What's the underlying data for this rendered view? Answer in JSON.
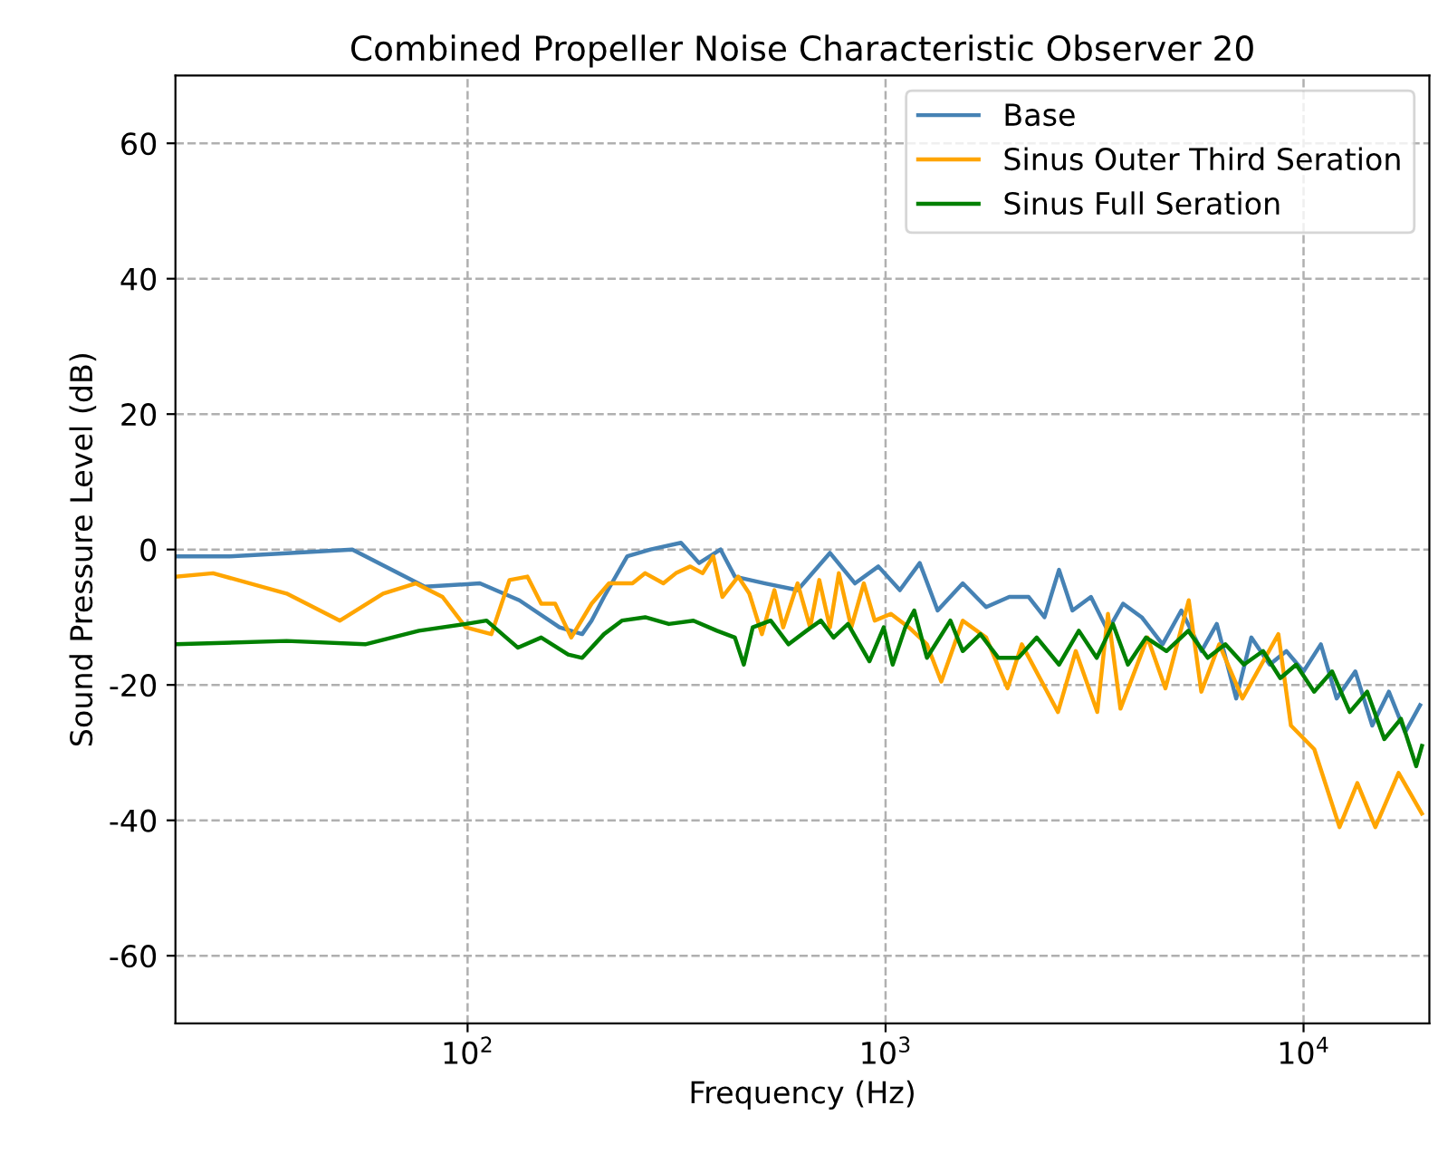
{
  "chart_data": {
    "type": "line",
    "title": "Combined Propeller Noise Characteristic Observer 20",
    "xlabel": "Frequency (Hz)",
    "ylabel": "Sound Pressure Level (dB)",
    "log": "x",
    "xlim": [
      20,
      20000
    ],
    "ylim": [
      -70,
      70
    ],
    "xticks": [
      {
        "value": 100,
        "label": "10$^{2}$"
      },
      {
        "value": 1000,
        "label": "10$^{3}$"
      },
      {
        "value": 10000,
        "label": "10$^{4}$"
      }
    ],
    "yticks": [
      -60,
      -40,
      -20,
      0,
      20,
      40,
      60
    ],
    "grid": true,
    "legend": "top right",
    "line_style": "solid",
    "marker": "none",
    "series": [
      {
        "name": "Base",
        "color": "#4682b4",
        "x": [
          20,
          27,
          53,
          79,
          107,
          133,
          166,
          188,
          198,
          212,
          241,
          274,
          324,
          358,
          403,
          436,
          515,
          616,
          736,
          845,
          961,
          1082,
          1207,
          1332,
          1530,
          1740,
          1977,
          2200,
          2400,
          2600,
          2800,
          3100,
          3400,
          3700,
          4100,
          4600,
          5100,
          5700,
          6200,
          6900,
          7500,
          8300,
          9100,
          10000,
          11000,
          12000,
          13300,
          14600,
          16000,
          17500,
          19000
        ],
        "values": [
          -1,
          -1,
          0,
          -5.5,
          -5,
          -7.5,
          -11.5,
          -12.5,
          -10.5,
          -7,
          -1,
          0,
          1,
          -2,
          0,
          -4,
          -5,
          -6,
          -0.5,
          -5,
          -2.5,
          -6,
          -2,
          -9,
          -5,
          -8.5,
          -7,
          -7,
          -10,
          -3,
          -9,
          -7,
          -12,
          -8,
          -10,
          -14,
          -9,
          -15,
          -11,
          -22,
          -13,
          -17,
          -15,
          -18,
          -14,
          -22,
          -18,
          -26,
          -21,
          -27,
          -23
        ]
      },
      {
        "name": "Sinus Outer Third Seration",
        "color": "#ffa500",
        "x": [
          20,
          24.6,
          36.9,
          49.5,
          62.8,
          75.1,
          87.1,
          99,
          114,
          126,
          139,
          150,
          162,
          177,
          198,
          218,
          248,
          266,
          294,
          315,
          341,
          365,
          387,
          407,
          444,
          472,
          506,
          542,
          569,
          616,
          660,
          694,
          736,
          773,
          828,
          887,
          942,
          1030,
          1137,
          1256,
          1359,
          1530,
          1740,
          1958,
          2118,
          2585,
          2851,
          3210,
          3405,
          3648,
          4233,
          4673,
          5314,
          5694,
          6285,
          7141,
          8705,
          9328,
          10610,
          12190,
          13450,
          14850,
          16880,
          19190
        ],
        "values": [
          -4,
          -3.5,
          -6.5,
          -10.5,
          -6.5,
          -5,
          -7,
          -11.5,
          -12.5,
          -4.5,
          -4,
          -8,
          -8,
          -13,
          -8,
          -5,
          -5,
          -3.5,
          -5,
          -3.5,
          -2.5,
          -3.5,
          -1,
          -7,
          -4,
          -6.5,
          -12.5,
          -6,
          -11.5,
          -5,
          -11.5,
          -4.5,
          -11.5,
          -3.5,
          -11.5,
          -5,
          -10.5,
          -9.5,
          -11.5,
          -14,
          -19.5,
          -10.5,
          -13,
          -20.5,
          -14,
          -24,
          -15,
          -24,
          -9.5,
          -23.5,
          -13,
          -20.5,
          -7.5,
          -21,
          -14,
          -22,
          -12.5,
          -26,
          -29.5,
          -41,
          -34.5,
          -41,
          -33,
          -39
        ]
      },
      {
        "name": "Sinus Full Seration",
        "color": "#008000",
        "x": [
          20,
          36.9,
          56.9,
          76.5,
          99,
          111,
          132,
          150,
          174,
          188,
          212,
          234,
          266,
          303,
          347,
          395,
          436,
          458,
          481,
          531,
          586,
          647,
          700,
          751,
          813,
          915,
          990,
          1040,
          1115,
          1171,
          1256,
          1429,
          1530,
          1686,
          1862,
          2079,
          2300,
          2600,
          2900,
          3200,
          3500,
          3800,
          4200,
          4700,
          5300,
          5900,
          6500,
          7200,
          8000,
          8800,
          9600,
          10600,
          11700,
          12900,
          14200,
          15600,
          17100,
          18600,
          19200
        ],
        "values": [
          -14,
          -13.5,
          -14,
          -12,
          -11,
          -10.5,
          -14.5,
          -13,
          -15.5,
          -16,
          -12.5,
          -10.5,
          -10,
          -11,
          -10.5,
          -12,
          -13,
          -17,
          -11.5,
          -10.5,
          -14,
          -12,
          -10.5,
          -13,
          -11,
          -16.5,
          -11.5,
          -17,
          -11.5,
          -9,
          -16,
          -10.5,
          -15,
          -12.5,
          -16,
          -16,
          -13,
          -17,
          -12,
          -16,
          -11,
          -17,
          -13,
          -15,
          -12,
          -16,
          -14,
          -17,
          -15,
          -19,
          -17,
          -21,
          -18,
          -24,
          -21,
          -28,
          -25,
          -32,
          -29
        ]
      }
    ]
  }
}
